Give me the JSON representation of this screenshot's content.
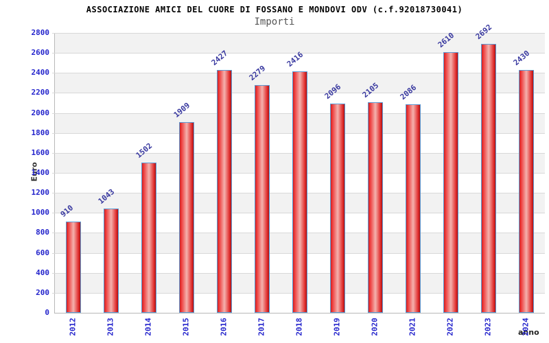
{
  "header": {
    "title": "ASSOCIAZIONE AMICI DEL CUORE DI FOSSANO E MONDOVI ODV (c.f.92018730041)",
    "subtitle": "Importi"
  },
  "chart_data": {
    "type": "bar",
    "title": "ASSOCIAZIONE AMICI DEL CUORE DI FOSSANO E MONDOVI ODV (c.f.92018730041)",
    "subtitle": "Importi",
    "categories": [
      "2012",
      "2013",
      "2014",
      "2015",
      "2016",
      "2017",
      "2018",
      "2019",
      "2020",
      "2021",
      "2022",
      "2023",
      "2024"
    ],
    "values": [
      910,
      1043,
      1502,
      1909,
      2427,
      2279,
      2416,
      2096,
      2105,
      2086,
      2610,
      2692,
      2430
    ],
    "xlabel": "anno",
    "ylabel": "Euro",
    "ylim": [
      0,
      2800
    ],
    "ytick_step": 200,
    "grid": true,
    "alternating_bands": true,
    "legend_position": "none",
    "value_labels_rotation_deg": -40,
    "x_labels_rotation_deg": -90
  },
  "colors": {
    "bar_border": "#5b9bd5",
    "bar_fill_edge": "#d02020",
    "bar_fill_center": "#f4b2ae",
    "tick_label": "#2424cc",
    "value_label": "#3a3aa0",
    "gridline": "#d8d8d8",
    "band_gray": "#f2f2f2",
    "band_white": "#ffffff",
    "axis_line": "#b8b8b8",
    "title": "#000000",
    "subtitle": "#555555",
    "axis_title": "#333333"
  }
}
